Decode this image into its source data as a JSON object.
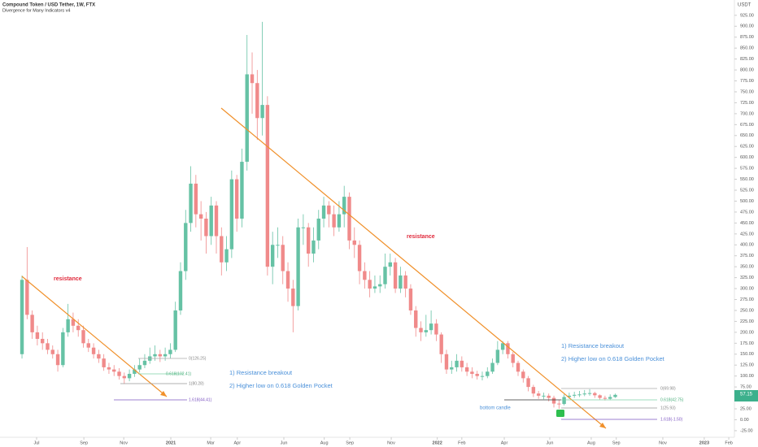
{
  "chart_data": {
    "type": "candlestick",
    "title": "Compound Token / USD Tether, 1W, FTX",
    "subtitle": "Divergence for Many Indicators v4",
    "y_unit": "USDT",
    "up_color": "#66c2a5",
    "down_color": "#f08a8a",
    "x": [
      0,
      1,
      2,
      3,
      4,
      5,
      6,
      7,
      8,
      9,
      10,
      11,
      12,
      13,
      14,
      15,
      16,
      17,
      18,
      19,
      20,
      21,
      22,
      23,
      24,
      25,
      26,
      27,
      28,
      29,
      30,
      31,
      32,
      33,
      34,
      35,
      36,
      37,
      38,
      39,
      40,
      41,
      42,
      43,
      44,
      45,
      46,
      47,
      48,
      49,
      50,
      51,
      52,
      53,
      54,
      55,
      56,
      57,
      58,
      59,
      60,
      61,
      62,
      63,
      64,
      65,
      66,
      67,
      68,
      69,
      70,
      71,
      72,
      73,
      74,
      75,
      76,
      77,
      78,
      79,
      80,
      81,
      82,
      83,
      84,
      85,
      86,
      87,
      88,
      89,
      90,
      91,
      92,
      93,
      94,
      95,
      96,
      97,
      98,
      99,
      100,
      101,
      102,
      103,
      104,
      105,
      106,
      107,
      108,
      109,
      110,
      111,
      112,
      113,
      114,
      115,
      116
    ],
    "open": [
      150,
      320,
      240,
      200,
      185,
      175,
      160,
      150,
      125,
      200,
      230,
      215,
      205,
      175,
      165,
      150,
      140,
      120,
      115,
      110,
      100,
      95,
      105,
      115,
      125,
      135,
      145,
      150,
      145,
      150,
      160,
      250,
      340,
      450,
      540,
      470,
      460,
      420,
      490,
      420,
      360,
      390,
      550,
      460,
      590,
      790,
      770,
      690,
      720,
      350,
      400,
      400,
      340,
      300,
      260,
      440,
      440,
      380,
      410,
      460,
      490,
      470,
      440,
      470,
      510,
      410,
      400,
      340,
      320,
      300,
      305,
      310,
      350,
      360,
      300,
      330,
      300,
      250,
      210,
      200,
      205,
      220,
      195,
      150,
      115,
      120,
      135,
      120,
      110,
      105,
      100,
      100,
      110,
      130,
      160,
      175,
      150,
      130,
      110,
      95,
      75,
      60,
      55,
      55,
      50,
      37,
      36,
      52,
      55,
      57,
      58,
      60,
      61,
      56,
      50,
      48,
      52
    ],
    "high": [
      330,
      395,
      250,
      215,
      200,
      185,
      170,
      160,
      210,
      265,
      245,
      230,
      215,
      185,
      175,
      160,
      150,
      130,
      125,
      118,
      108,
      115,
      125,
      140,
      150,
      165,
      170,
      160,
      165,
      175,
      270,
      360,
      480,
      580,
      560,
      500,
      475,
      510,
      500,
      440,
      420,
      570,
      560,
      620,
      880,
      840,
      800,
      910,
      740,
      430,
      440,
      420,
      360,
      320,
      460,
      470,
      450,
      440,
      480,
      510,
      500,
      490,
      500,
      535,
      520,
      440,
      410,
      360,
      340,
      330,
      330,
      380,
      380,
      370,
      350,
      340,
      310,
      260,
      225,
      240,
      250,
      230,
      200,
      160,
      135,
      150,
      145,
      130,
      120,
      112,
      110,
      120,
      140,
      180,
      180,
      180,
      155,
      135,
      115,
      100,
      80,
      66,
      62,
      60,
      55,
      45,
      58,
      62,
      64,
      66,
      68,
      70,
      64,
      58,
      55,
      58,
      60
    ],
    "low": [
      140,
      230,
      185,
      170,
      160,
      150,
      140,
      110,
      120,
      190,
      200,
      190,
      165,
      155,
      140,
      130,
      112,
      105,
      100,
      92,
      82,
      88,
      98,
      108,
      118,
      128,
      135,
      132,
      135,
      140,
      155,
      240,
      320,
      430,
      440,
      410,
      380,
      400,
      380,
      330,
      340,
      370,
      430,
      440,
      570,
      700,
      640,
      650,
      330,
      310,
      370,
      310,
      270,
      200,
      250,
      400,
      350,
      360,
      390,
      440,
      440,
      420,
      430,
      440,
      390,
      370,
      310,
      300,
      280,
      290,
      290,
      300,
      330,
      290,
      290,
      280,
      240,
      190,
      180,
      190,
      195,
      180,
      130,
      105,
      105,
      110,
      110,
      100,
      95,
      92,
      90,
      95,
      105,
      125,
      150,
      140,
      120,
      100,
      85,
      65,
      52,
      48,
      47,
      42,
      28,
      25,
      33,
      48,
      50,
      52,
      54,
      55,
      50,
      46,
      44,
      45,
      50
    ],
    "close": [
      320,
      240,
      200,
      185,
      175,
      160,
      150,
      125,
      200,
      230,
      215,
      205,
      175,
      165,
      150,
      140,
      120,
      115,
      110,
      100,
      95,
      105,
      115,
      125,
      135,
      145,
      150,
      145,
      150,
      160,
      250,
      340,
      450,
      540,
      470,
      460,
      420,
      490,
      420,
      360,
      390,
      550,
      460,
      590,
      790,
      770,
      690,
      720,
      350,
      400,
      400,
      340,
      300,
      260,
      440,
      440,
      380,
      410,
      460,
      490,
      470,
      440,
      470,
      510,
      410,
      400,
      340,
      320,
      300,
      305,
      310,
      350,
      360,
      300,
      330,
      300,
      250,
      210,
      200,
      205,
      220,
      195,
      150,
      115,
      120,
      135,
      120,
      110,
      105,
      100,
      100,
      110,
      130,
      160,
      175,
      150,
      130,
      110,
      95,
      75,
      60,
      55,
      55,
      50,
      37,
      36,
      52,
      55,
      57,
      58,
      60,
      61,
      56,
      50,
      48,
      52,
      57
    ],
    "xlim": [
      -4.3,
      139.3
    ],
    "xticks": [
      {
        "value": 2.86,
        "label": "Jul"
      },
      {
        "value": 12.1,
        "label": "Sep"
      },
      {
        "value": 19.9,
        "label": "Nov"
      },
      {
        "value": 29.1,
        "label": "2021"
      },
      {
        "value": 36.9,
        "label": "Mar"
      },
      {
        "value": 42.1,
        "label": "Apr"
      },
      {
        "value": 51.2,
        "label": "Jun"
      },
      {
        "value": 59.1,
        "label": "Aug"
      },
      {
        "value": 64.1,
        "label": "Sep"
      },
      {
        "value": 72.2,
        "label": "Nov"
      },
      {
        "value": 81.2,
        "label": "2022"
      },
      {
        "value": 86.0,
        "label": "Feb"
      },
      {
        "value": 94.3,
        "label": "Apr"
      },
      {
        "value": 103.2,
        "label": "Jun"
      },
      {
        "value": 111.3,
        "label": "Aug"
      },
      {
        "value": 116.2,
        "label": "Sep"
      },
      {
        "value": 125.3,
        "label": "Nov"
      },
      {
        "value": 133.4,
        "label": "2023"
      },
      {
        "value": 138.2,
        "label": "Feb"
      }
    ],
    "ylim": [
      -40,
      960
    ],
    "yticks": [
      {
        "value": -25,
        "label": "-25.00"
      },
      {
        "value": 0,
        "label": "0.00"
      },
      {
        "value": 25,
        "label": "25.00"
      },
      {
        "value": 50,
        "label": "50.00"
      },
      {
        "value": 75,
        "label": "75.00"
      },
      {
        "value": 100,
        "label": "100.00"
      },
      {
        "value": 125,
        "label": "125.00"
      },
      {
        "value": 150,
        "label": "150.00"
      },
      {
        "value": 175,
        "label": "175.00"
      },
      {
        "value": 200,
        "label": "200.00"
      },
      {
        "value": 225,
        "label": "225.00"
      },
      {
        "value": 250,
        "label": "250.00"
      },
      {
        "value": 275,
        "label": "275.00"
      },
      {
        "value": 300,
        "label": "300.00"
      },
      {
        "value": 325,
        "label": "325.00"
      },
      {
        "value": 350,
        "label": "350.00"
      },
      {
        "value": 375,
        "label": "375.00"
      },
      {
        "value": 400,
        "label": "400.00"
      },
      {
        "value": 425,
        "label": "425.00"
      },
      {
        "value": 450,
        "label": "450.00"
      },
      {
        "value": 475,
        "label": "475.00"
      },
      {
        "value": 500,
        "label": "500.00"
      },
      {
        "value": 525,
        "label": "525.00"
      },
      {
        "value": 550,
        "label": "550.00"
      },
      {
        "value": 575,
        "label": "575.00"
      },
      {
        "value": 600,
        "label": "600.00"
      },
      {
        "value": 625,
        "label": "625.00"
      },
      {
        "value": 650,
        "label": "650.00"
      },
      {
        "value": 675,
        "label": "675.00"
      },
      {
        "value": 700,
        "label": "700.00"
      },
      {
        "value": 725,
        "label": "725.00"
      },
      {
        "value": 750,
        "label": "750.00"
      },
      {
        "value": 775,
        "label": "775.00"
      },
      {
        "value": 800,
        "label": "800.00"
      },
      {
        "value": 825,
        "label": "825.00"
      },
      {
        "value": 850,
        "label": "850.00"
      },
      {
        "value": 875,
        "label": "875.00"
      },
      {
        "value": 900,
        "label": "900.00"
      },
      {
        "value": 925,
        "label": "925.00"
      }
    ],
    "last_price_label": "57.15",
    "annotations": [
      "resistance",
      "resistance",
      "1) Resistance breakout",
      "2) Higher low on 0.618 Golden Pocket",
      "1) Resistance breakout",
      "2) Higher low on 0.618 Golden Pocket",
      "bottom candle"
    ],
    "fib_left": [
      "0(126.25)",
      "0.618(102.41)",
      "1(80.28)",
      "1.618(44.41)"
    ],
    "fib_right": [
      "0(69.98)",
      "0.618(42.75)",
      "1(25.93)",
      "1.618(-1.50)"
    ]
  }
}
